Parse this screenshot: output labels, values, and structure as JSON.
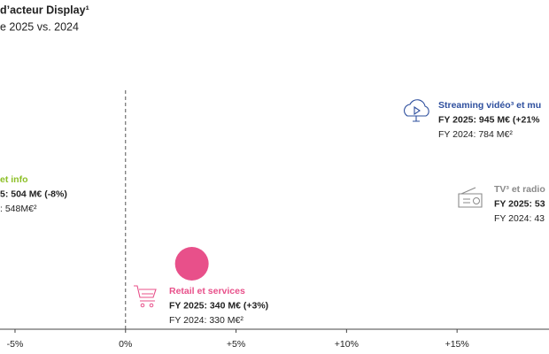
{
  "chart_data": {
    "type": "bubble",
    "title": "d’acteur Display¹",
    "subtitle": "e 2025 vs. 2024",
    "xlim": [
      -5.68,
      19.16
    ],
    "xticks": [
      {
        "value": -5,
        "label": "-5%"
      },
      {
        "value": 0,
        "label": "0%"
      },
      {
        "value": 5,
        "label": "+5%"
      },
      {
        "value": 10,
        "label": "+10%"
      },
      {
        "value": 15,
        "label": "+15%"
      }
    ],
    "series": [
      {
        "name": "et info",
        "color": "#8cbf26",
        "details": [
          "5: 504 M€ (-8%)",
          ": 548M€²"
        ]
      },
      {
        "name": "Streaming vidéo³ et mu",
        "color": "#2e4f9e",
        "details": [
          "FY 2025: 945 M€ (+21%",
          "FY 2024: 784 M€²"
        ]
      },
      {
        "name": "TV³ et radio",
        "color": "#8a8a8a",
        "details": [
          "FY 2025: 53",
          "FY 2024: 43"
        ]
      },
      {
        "name": "Retail et services",
        "color": "#e8508a",
        "details": [
          "FY 2025: 340 M€ (+3%)",
          "FY 2024: 330 M€²"
        ],
        "x": [
          3
        ],
        "sizes": [
          340
        ]
      }
    ]
  }
}
